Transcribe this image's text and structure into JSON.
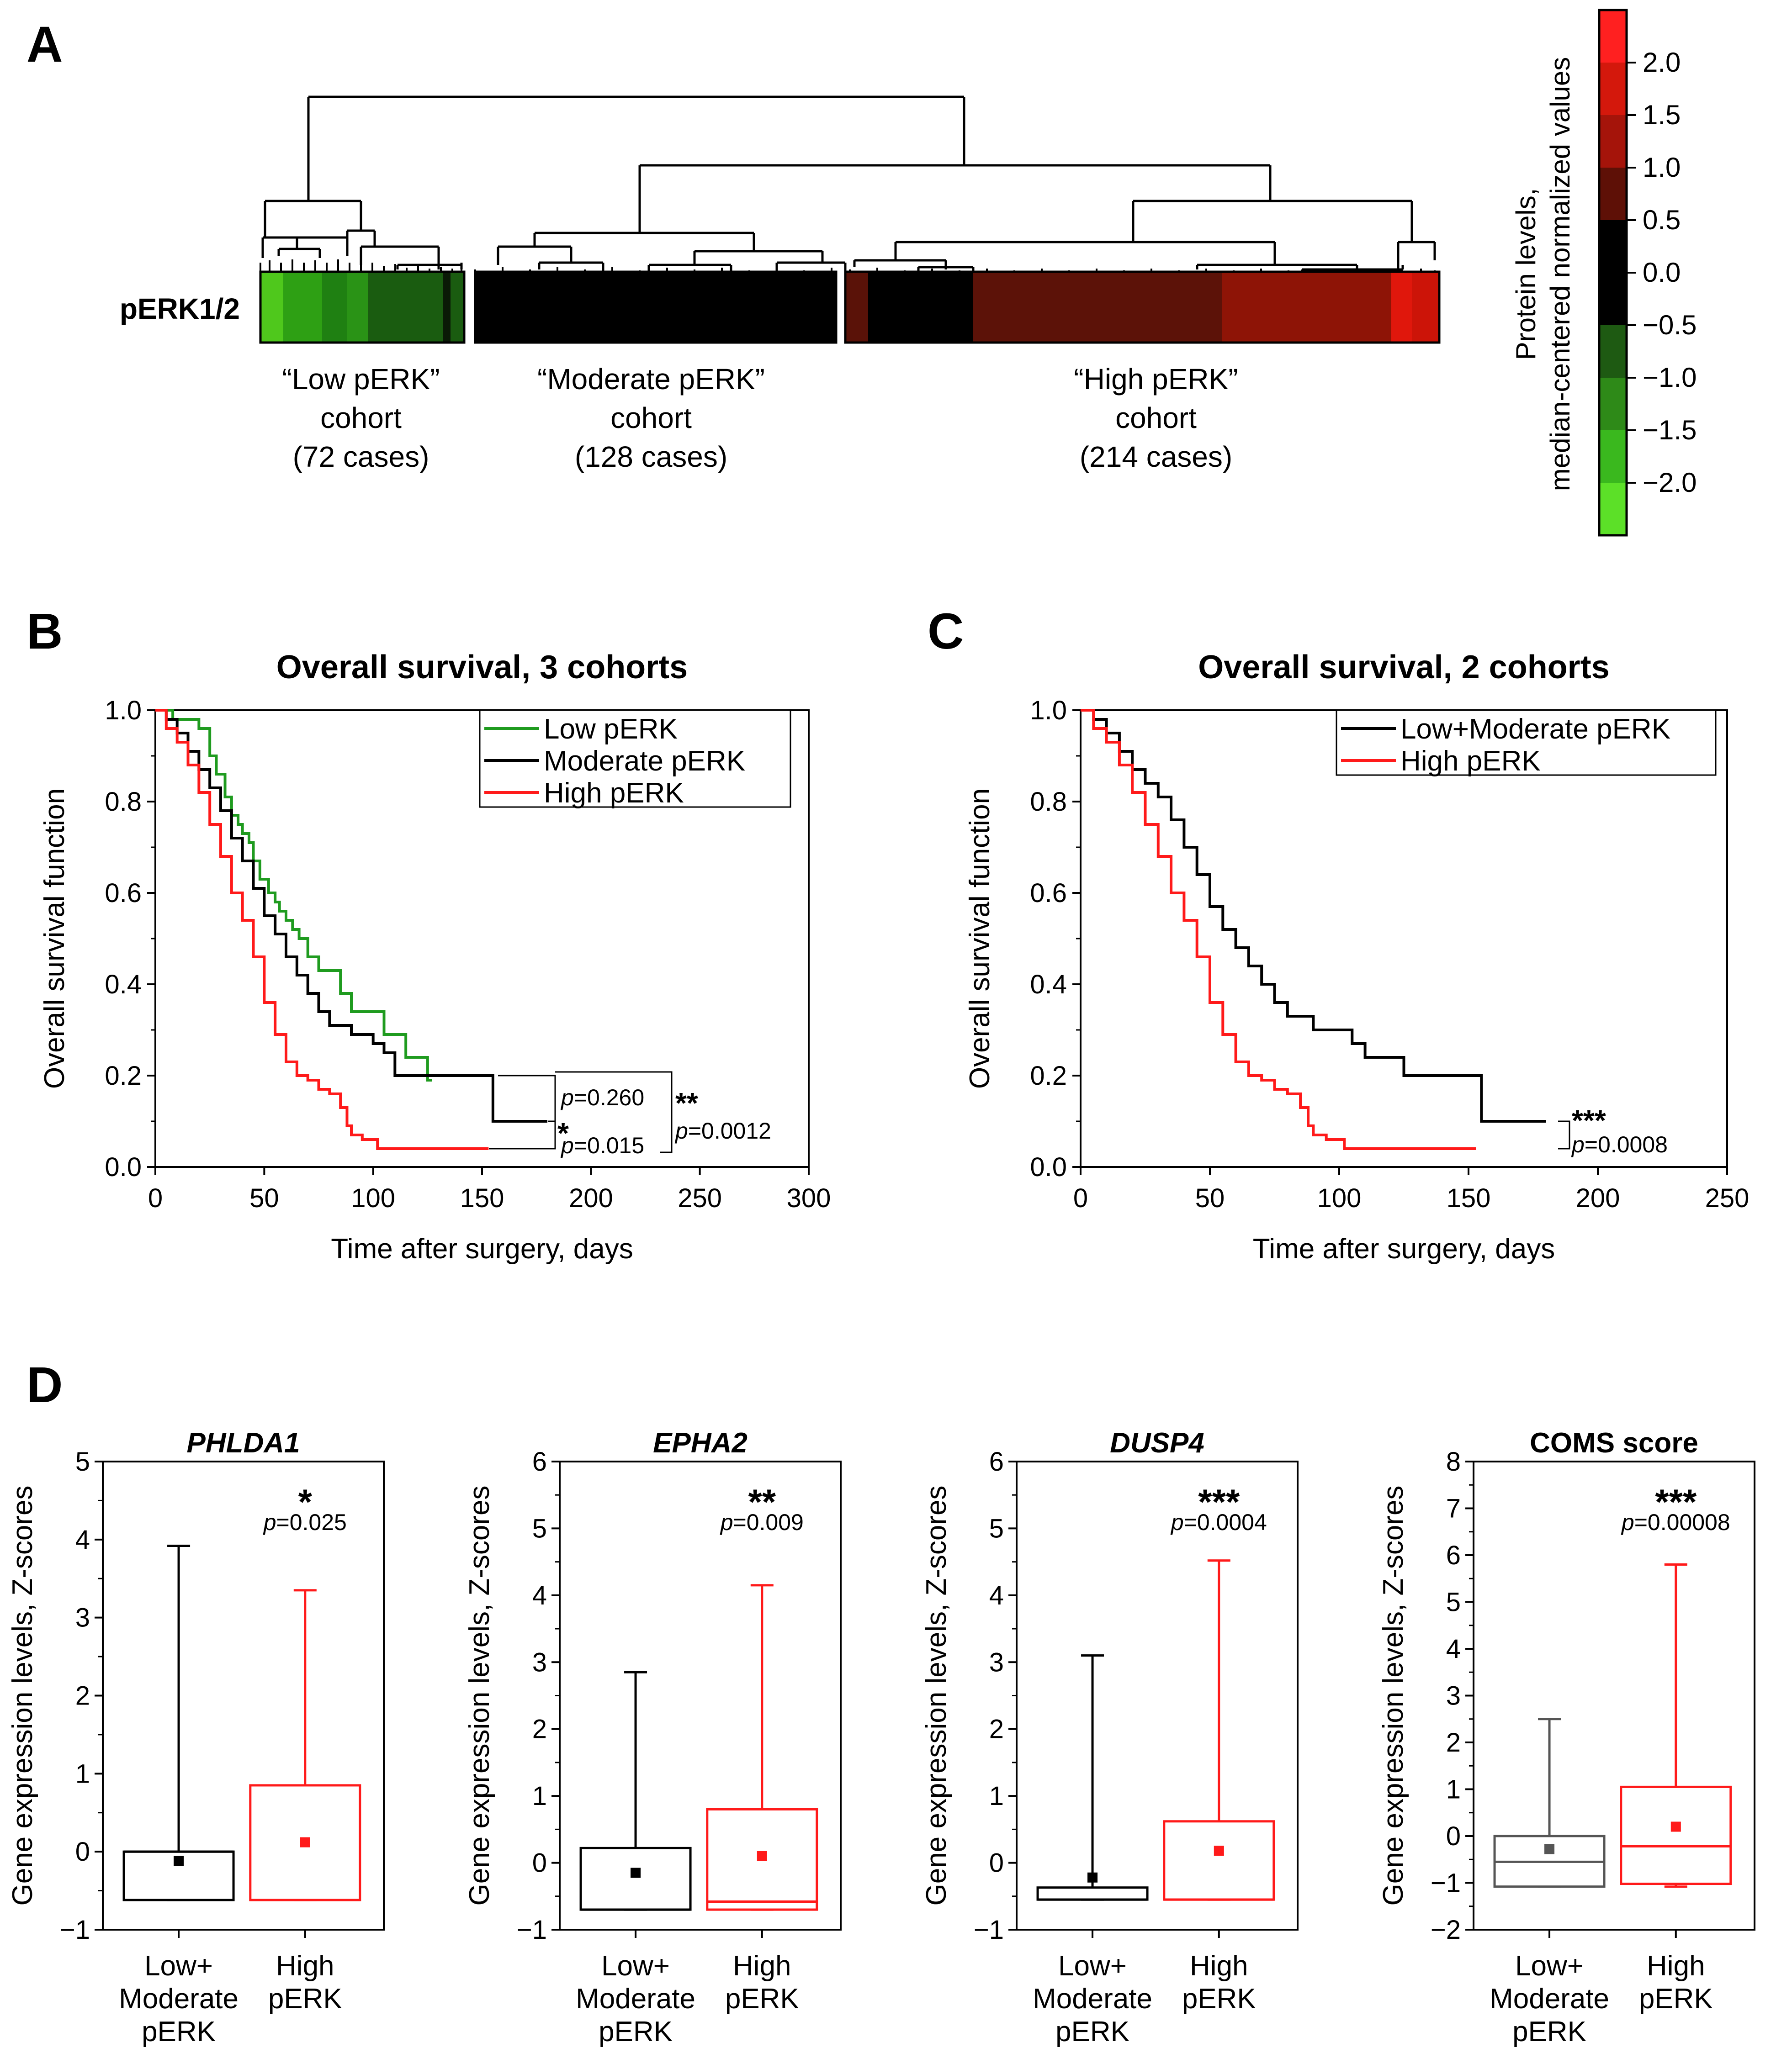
{
  "panels": {
    "a": {
      "letter": "A",
      "row_label": "pERK1/2",
      "cohorts": [
        {
          "line1": "“Low pERK”",
          "line2": "cohort",
          "line3": "(72 cases)"
        },
        {
          "line1": "“Moderate pERK”",
          "line2": "cohort",
          "line3": "(128 cases)"
        },
        {
          "line1": "“High pERK”",
          "line2": "cohort",
          "line3": "(214 cases)"
        }
      ],
      "colorbar": {
        "title_line1": "Protein levels,",
        "title_line2": "median-centered normalized values",
        "ticks": [
          "2.0",
          "1.5",
          "1.0",
          "0.5",
          "0.0",
          "−0.5",
          "−1.0",
          "−1.5",
          "−2.0"
        ]
      }
    },
    "b": {
      "letter": "B"
    },
    "c": {
      "letter": "C"
    },
    "d": {
      "letter": "D"
    }
  },
  "colors": {
    "green": "#1f9b1f",
    "black": "#000000",
    "red": "#ff1a1a",
    "gray": "#555555"
  },
  "chart_data": [
    {
      "type": "heatmap",
      "id": "A",
      "row": "pERK1/2",
      "categories": [
        "Low pERK (72 cases)",
        "Moderate pERK (128 cases)",
        "High pERK (214 cases)"
      ],
      "colorbar_range": [
        -2.5,
        2.5
      ]
    },
    {
      "type": "line",
      "id": "B",
      "title": "Overall survival, 3 cohorts",
      "xlabel": "Time after surgery, days",
      "ylabel": "Overall survival function",
      "xlim": [
        0,
        300
      ],
      "ylim": [
        0,
        1.0
      ],
      "xticks": [
        "0",
        "50",
        "100",
        "150",
        "200",
        "250",
        "300"
      ],
      "yticks": [
        "0.0",
        "0.2",
        "0.4",
        "0.6",
        "0.8",
        "1.0"
      ],
      "series": [
        {
          "name": "Low pERK",
          "color": "green",
          "x": [
            0,
            8,
            18,
            20,
            25,
            28,
            32,
            35,
            38,
            40,
            43,
            45,
            48,
            52,
            55,
            57,
            60,
            63,
            66,
            70,
            75,
            80,
            85,
            90,
            95,
            100,
            105,
            110,
            115,
            120,
            125,
            127
          ],
          "y": [
            1.0,
            0.98,
            0.98,
            0.96,
            0.9,
            0.86,
            0.81,
            0.77,
            0.75,
            0.73,
            0.71,
            0.67,
            0.63,
            0.6,
            0.58,
            0.56,
            0.54,
            0.52,
            0.5,
            0.46,
            0.43,
            0.43,
            0.38,
            0.34,
            0.34,
            0.34,
            0.29,
            0.29,
            0.24,
            0.24,
            0.19,
            0.19
          ]
        },
        {
          "name": "Moderate pERK",
          "color": "black",
          "x": [
            0,
            5,
            10,
            15,
            20,
            25,
            30,
            35,
            40,
            45,
            50,
            55,
            60,
            65,
            70,
            75,
            80,
            90,
            100,
            105,
            110,
            125,
            140,
            152,
            155,
            170,
            180
          ],
          "y": [
            1.0,
            0.98,
            0.95,
            0.91,
            0.87,
            0.83,
            0.78,
            0.72,
            0.67,
            0.61,
            0.55,
            0.51,
            0.46,
            0.42,
            0.38,
            0.34,
            0.31,
            0.29,
            0.27,
            0.25,
            0.2,
            0.2,
            0.2,
            0.2,
            0.1,
            0.1,
            0.1
          ]
        },
        {
          "name": "High pERK",
          "color": "red",
          "x": [
            0,
            5,
            10,
            15,
            20,
            25,
            30,
            35,
            40,
            45,
            50,
            55,
            60,
            65,
            70,
            75,
            80,
            85,
            88,
            90,
            92,
            95,
            100,
            102,
            105,
            120,
            135,
            153
          ],
          "y": [
            1.0,
            0.96,
            0.93,
            0.88,
            0.82,
            0.75,
            0.68,
            0.6,
            0.54,
            0.46,
            0.36,
            0.29,
            0.23,
            0.2,
            0.19,
            0.17,
            0.16,
            0.13,
            0.09,
            0.07,
            0.07,
            0.06,
            0.06,
            0.04,
            0.04,
            0.04,
            0.04,
            0.04
          ]
        }
      ],
      "annotations": {
        "p_top": "=0.260",
        "p_bottom": "=0.015",
        "p_overall": "=0.0012",
        "stars_bottom": "*",
        "stars_overall": "**",
        "p_italic": "p"
      }
    },
    {
      "type": "line",
      "id": "C",
      "title": "Overall survival, 2 cohorts",
      "xlabel": "Time after surgery, days",
      "ylabel": "Overall survival function",
      "xlim": [
        0,
        250
      ],
      "ylim": [
        0,
        1.0
      ],
      "xticks": [
        "0",
        "50",
        "100",
        "150",
        "200",
        "250"
      ],
      "yticks": [
        "0.0",
        "0.2",
        "0.4",
        "0.6",
        "0.8",
        "1.0"
      ],
      "series": [
        {
          "name": "Low+Moderate pERK",
          "color": "black",
          "x": [
            0,
            5,
            10,
            15,
            20,
            25,
            30,
            35,
            40,
            45,
            50,
            55,
            60,
            65,
            70,
            75,
            80,
            90,
            100,
            105,
            110,
            125,
            140,
            152,
            155,
            170,
            180
          ],
          "y": [
            1.0,
            0.98,
            0.95,
            0.91,
            0.87,
            0.84,
            0.81,
            0.76,
            0.7,
            0.64,
            0.57,
            0.52,
            0.48,
            0.44,
            0.4,
            0.36,
            0.33,
            0.3,
            0.3,
            0.27,
            0.24,
            0.2,
            0.2,
            0.2,
            0.1,
            0.1,
            0.1
          ]
        },
        {
          "name": "High pERK",
          "color": "red",
          "x": [
            0,
            5,
            10,
            15,
            20,
            25,
            30,
            35,
            40,
            45,
            50,
            55,
            60,
            65,
            70,
            75,
            80,
            85,
            88,
            90,
            92,
            95,
            100,
            102,
            105,
            120,
            135,
            153
          ],
          "y": [
            1.0,
            0.96,
            0.93,
            0.88,
            0.82,
            0.75,
            0.68,
            0.6,
            0.54,
            0.46,
            0.36,
            0.29,
            0.23,
            0.2,
            0.19,
            0.17,
            0.16,
            0.13,
            0.09,
            0.07,
            0.07,
            0.06,
            0.06,
            0.04,
            0.04,
            0.04,
            0.04,
            0.04
          ]
        }
      ],
      "annotations": {
        "p": "=0.0008",
        "stars": "***",
        "p_italic": "p"
      }
    },
    {
      "type": "box",
      "id": "D1",
      "title": "PHLDA1",
      "title_italic": true,
      "ylabel": "Gene expression levels, Z-scores",
      "ylim": [
        -1,
        5
      ],
      "yticks": [
        "−1",
        "0",
        "1",
        "2",
        "3",
        "4",
        "5"
      ],
      "categories": [
        [
          "Low+",
          "Moderate",
          "pERK"
        ],
        [
          "High",
          "pERK"
        ]
      ],
      "boxes": [
        {
          "color": "black",
          "whisker_high": 3.92,
          "q3": 0.0,
          "median": 0.0,
          "q1": -0.62,
          "mean": -0.12,
          "whisker_low": -0.62
        },
        {
          "color": "red",
          "whisker_high": 3.35,
          "q3": 0.85,
          "median": -0.62,
          "q1": -0.62,
          "mean": 0.12,
          "whisker_low": -0.62
        }
      ],
      "stars": "*",
      "p_italic": "p",
      "p": "=0.025"
    },
    {
      "type": "box",
      "id": "D2",
      "title": "EPHA2",
      "title_italic": true,
      "ylabel": "Gene expression levels, Z-scores",
      "ylim": [
        -1,
        6
      ],
      "yticks": [
        "−1",
        "0",
        "1",
        "2",
        "3",
        "4",
        "5",
        "6"
      ],
      "categories": [
        [
          "Low+",
          "Moderate",
          "pERK"
        ],
        [
          "High",
          "pERK"
        ]
      ],
      "boxes": [
        {
          "color": "black",
          "whisker_high": 2.85,
          "q3": 0.22,
          "median": -0.7,
          "q1": -0.7,
          "mean": -0.15,
          "whisker_low": -0.7
        },
        {
          "color": "red",
          "whisker_high": 4.15,
          "q3": 0.8,
          "median": -0.58,
          "q1": -0.7,
          "mean": 0.1,
          "whisker_low": -0.7
        }
      ],
      "stars": "**",
      "p_italic": "p",
      "p": "=0.009"
    },
    {
      "type": "box",
      "id": "D3",
      "title": "DUSP4",
      "title_italic": true,
      "ylabel": "Gene expression levels, Z-scores",
      "ylim": [
        -1,
        6
      ],
      "yticks": [
        "−1",
        "0",
        "1",
        "2",
        "3",
        "4",
        "5",
        "6"
      ],
      "categories": [
        [
          "Low+",
          "Moderate",
          "pERK"
        ],
        [
          "High",
          "pERK"
        ]
      ],
      "boxes": [
        {
          "color": "black",
          "whisker_high": 3.1,
          "q3": -0.37,
          "median": -0.55,
          "q1": -0.55,
          "mean": -0.22,
          "whisker_low": -0.55
        },
        {
          "color": "red",
          "whisker_high": 4.52,
          "q3": 0.62,
          "median": -0.55,
          "q1": -0.55,
          "mean": 0.18,
          "whisker_low": -0.55
        }
      ],
      "stars": "***",
      "p_italic": "p",
      "p": "=0.0004"
    },
    {
      "type": "box",
      "id": "D4",
      "title": "COMS score",
      "title_italic": false,
      "ylabel": "Gene expression levels, Z-scores",
      "ylim": [
        -2,
        8
      ],
      "yticks": [
        "−2",
        "−1",
        "0",
        "1",
        "2",
        "3",
        "4",
        "5",
        "6",
        "7",
        "8"
      ],
      "categories": [
        [
          "Low+",
          "Moderate",
          "pERK"
        ],
        [
          "High",
          "pERK"
        ]
      ],
      "boxes": [
        {
          "color": "gray",
          "whisker_high": 2.5,
          "q3": 0.0,
          "median": -0.55,
          "q1": -1.08,
          "mean": -0.28,
          "whisker_low": -1.08
        },
        {
          "color": "red",
          "whisker_high": 5.8,
          "q3": 1.05,
          "median": -0.22,
          "q1": -1.02,
          "mean": 0.2,
          "whisker_low": -1.08
        }
      ],
      "stars": "***",
      "p_italic": "p",
      "p": "=0.00008"
    }
  ]
}
